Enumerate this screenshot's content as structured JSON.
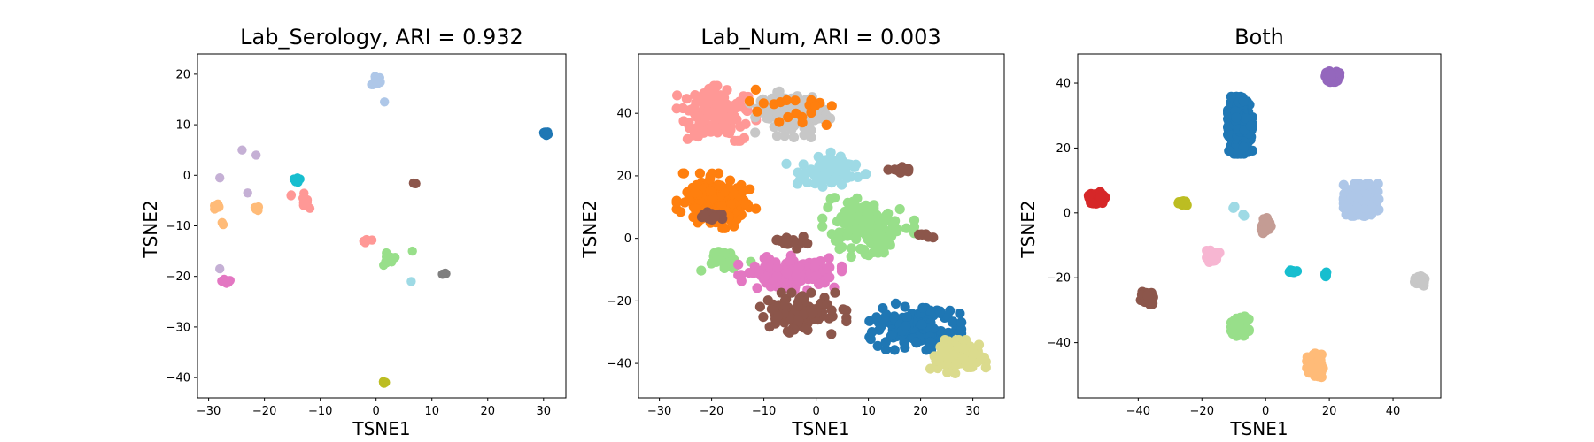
{
  "chart_data": [
    {
      "type": "scatter",
      "title": "Lab_Serology, ARI = 0.932",
      "xlabel": "TSNE1",
      "ylabel": "TSNE2",
      "xlim": [
        -32,
        34
      ],
      "ylim": [
        -44,
        24
      ],
      "xticks": [
        -30,
        -20,
        -10,
        0,
        10,
        20,
        30
      ],
      "yticks": [
        -40,
        -30,
        -20,
        -10,
        0,
        10,
        20
      ],
      "grid": false,
      "clusters": [
        {
          "color": "#aec7e8",
          "center": [
            0,
            18.5
          ],
          "spread": [
            1.2,
            1.6
          ],
          "n": 10,
          "seed": 11
        },
        {
          "color": "#aec7e8",
          "center": [
            1.5,
            14.5
          ],
          "spread": [
            0.2,
            0.2
          ],
          "n": 1,
          "seed": 12
        },
        {
          "color": "#1f77b4",
          "center": [
            30.5,
            8.3
          ],
          "spread": [
            0.6,
            0.6
          ],
          "n": 10,
          "seed": 13
        },
        {
          "color": "#c5b0d5",
          "center": [
            -24,
            5
          ],
          "spread": [
            0.3,
            0.3
          ],
          "n": 1,
          "seed": 14
        },
        {
          "color": "#c5b0d5",
          "center": [
            -21.5,
            4
          ],
          "spread": [
            0.3,
            0.3
          ],
          "n": 1,
          "seed": 15
        },
        {
          "color": "#c5b0d5",
          "center": [
            -28,
            -0.5
          ],
          "spread": [
            0.3,
            0.3
          ],
          "n": 1,
          "seed": 16
        },
        {
          "color": "#c5b0d5",
          "center": [
            -23,
            -3.5
          ],
          "spread": [
            0.3,
            0.3
          ],
          "n": 1,
          "seed": 17
        },
        {
          "color": "#c5b0d5",
          "center": [
            -28,
            -18.5
          ],
          "spread": [
            0.3,
            0.3
          ],
          "n": 1,
          "seed": 18
        },
        {
          "color": "#ffbb78",
          "center": [
            -28.7,
            -6
          ],
          "spread": [
            0.6,
            0.6
          ],
          "n": 6,
          "seed": 19
        },
        {
          "color": "#ffbb78",
          "center": [
            -21.5,
            -6.5
          ],
          "spread": [
            0.5,
            0.9
          ],
          "n": 4,
          "seed": 20
        },
        {
          "color": "#ffbb78",
          "center": [
            -27.5,
            -9.5
          ],
          "spread": [
            0.3,
            0.3
          ],
          "n": 2,
          "seed": 21
        },
        {
          "color": "#17becf",
          "center": [
            -14.3,
            -0.8
          ],
          "spread": [
            0.6,
            0.6
          ],
          "n": 8,
          "seed": 22
        },
        {
          "color": "#ff9896",
          "center": [
            -12.5,
            -5
          ],
          "spread": [
            0.9,
            1.8
          ],
          "n": 8,
          "seed": 23
        },
        {
          "color": "#ff9896",
          "center": [
            -15,
            -3.8
          ],
          "spread": [
            0.3,
            0.3
          ],
          "n": 2,
          "seed": 24
        },
        {
          "color": "#ff9896",
          "center": [
            -1.5,
            -13
          ],
          "spread": [
            0.9,
            0.3
          ],
          "n": 6,
          "seed": 25
        },
        {
          "color": "#8c564b",
          "center": [
            7,
            -1.5
          ],
          "spread": [
            0.3,
            0.3
          ],
          "n": 4,
          "seed": 26
        },
        {
          "color": "#98df8a",
          "center": [
            2,
            -16.5
          ],
          "spread": [
            2.5,
            1.5
          ],
          "n": 10,
          "seed": 27
        },
        {
          "color": "#98df8a",
          "center": [
            6.5,
            -15
          ],
          "spread": [
            0.3,
            0.3
          ],
          "n": 1,
          "seed": 28
        },
        {
          "color": "#9edae5",
          "center": [
            6.3,
            -21
          ],
          "spread": [
            0.3,
            0.3
          ],
          "n": 1,
          "seed": 29
        },
        {
          "color": "#7f7f7f",
          "center": [
            12,
            -19.5
          ],
          "spread": [
            0.6,
            0.3
          ],
          "n": 4,
          "seed": 30
        },
        {
          "color": "#e377c2",
          "center": [
            -27,
            -21
          ],
          "spread": [
            1.2,
            0.4
          ],
          "n": 10,
          "seed": 31
        },
        {
          "color": "#bcbd22",
          "center": [
            1.5,
            -41
          ],
          "spread": [
            0.5,
            0.2
          ],
          "n": 5,
          "seed": 32
        }
      ]
    },
    {
      "type": "scatter",
      "title": "Lab_Num, ARI = 0.003",
      "xlabel": "TSNE1",
      "ylabel": "TSNE2",
      "xlim": [
        -34,
        36
      ],
      "ylim": [
        -51,
        59
      ],
      "xticks": [
        -30,
        -20,
        -10,
        0,
        10,
        20,
        30
      ],
      "yticks": [
        -40,
        -20,
        0,
        20,
        40
      ],
      "grid": false,
      "clusters": [
        {
          "color": "#ff9896",
          "center": [
            -19,
            40
          ],
          "spread": [
            7,
            8
          ],
          "n": 130,
          "seed": 41
        },
        {
          "color": "#c7c7c7",
          "center": [
            -5,
            40
          ],
          "spread": [
            7,
            7
          ],
          "n": 120,
          "seed": 42
        },
        {
          "color": "#9edae5",
          "center": [
            2,
            22
          ],
          "spread": [
            7,
            5
          ],
          "n": 70,
          "seed": 43
        },
        {
          "color": "#ff7f0e",
          "center": [
            -19,
            12
          ],
          "spread": [
            7,
            8
          ],
          "n": 170,
          "seed": 44
        },
        {
          "color": "#ff7f0e",
          "center": [
            -6,
            42
          ],
          "spread": [
            10,
            6
          ],
          "n": 20,
          "seed": 45
        },
        {
          "color": "#98df8a",
          "center": [
            10,
            4
          ],
          "spread": [
            8,
            9
          ],
          "n": 140,
          "seed": 46
        },
        {
          "color": "#98df8a",
          "center": [
            -18,
            -7
          ],
          "spread": [
            5,
            3
          ],
          "n": 25,
          "seed": 47
        },
        {
          "color": "#e377c2",
          "center": [
            -5,
            -11
          ],
          "spread": [
            9,
            5
          ],
          "n": 140,
          "seed": 48
        },
        {
          "color": "#8c564b",
          "center": [
            -3,
            -24
          ],
          "spread": [
            8,
            6
          ],
          "n": 110,
          "seed": 49
        },
        {
          "color": "#8c564b",
          "center": [
            -5,
            -1
          ],
          "spread": [
            4,
            2
          ],
          "n": 20,
          "seed": 50
        },
        {
          "color": "#8c564b",
          "center": [
            -20,
            7
          ],
          "spread": [
            3,
            2
          ],
          "n": 12,
          "seed": 51
        },
        {
          "color": "#8c564b",
          "center": [
            16,
            22
          ],
          "spread": [
            2,
            1
          ],
          "n": 10,
          "seed": 52
        },
        {
          "color": "#8c564b",
          "center": [
            21,
            1
          ],
          "spread": [
            2,
            1
          ],
          "n": 6,
          "seed": 53
        },
        {
          "color": "#1f77b4",
          "center": [
            19,
            -28
          ],
          "spread": [
            8,
            7
          ],
          "n": 170,
          "seed": 54
        },
        {
          "color": "#dbdb8d",
          "center": [
            27,
            -38
          ],
          "spread": [
            5,
            5
          ],
          "n": 110,
          "seed": 55
        }
      ]
    },
    {
      "type": "scatter",
      "title": "Both",
      "xlabel": "TSNE1",
      "ylabel": "TSNE2",
      "xlim": [
        -59,
        55
      ],
      "ylim": [
        -57,
        49
      ],
      "xticks": [
        -40,
        -20,
        0,
        20,
        40
      ],
      "yticks": [
        -40,
        -20,
        0,
        20,
        40
      ],
      "grid": false,
      "clusters": [
        {
          "color": "#1f77b4",
          "center": [
            -8,
            27
          ],
          "spread": [
            3.5,
            8
          ],
          "n": 420,
          "seed": 61
        },
        {
          "color": "#9467bd",
          "center": [
            21,
            42
          ],
          "spread": [
            2,
            1.5
          ],
          "n": 60,
          "seed": 62
        },
        {
          "color": "#d62728",
          "center": [
            -53,
            4.5
          ],
          "spread": [
            2.3,
            1.8
          ],
          "n": 70,
          "seed": 63
        },
        {
          "color": "#bcbd22",
          "center": [
            -26,
            3
          ],
          "spread": [
            1.2,
            1
          ],
          "n": 15,
          "seed": 64
        },
        {
          "color": "#9edae5",
          "center": [
            -10,
            1.5
          ],
          "spread": [
            0.6,
            0.6
          ],
          "n": 3,
          "seed": 65
        },
        {
          "color": "#9edae5",
          "center": [
            -7,
            -1
          ],
          "spread": [
            0.4,
            0.4
          ],
          "n": 2,
          "seed": 66
        },
        {
          "color": "#c49c94",
          "center": [
            0,
            -4
          ],
          "spread": [
            1.5,
            2.2
          ],
          "n": 40,
          "seed": 67
        },
        {
          "color": "#aec7e8",
          "center": [
            30,
            4
          ],
          "spread": [
            5,
            4.5
          ],
          "n": 300,
          "seed": 68
        },
        {
          "color": "#f7b6d2",
          "center": [
            -16.5,
            -13.5
          ],
          "spread": [
            1.8,
            1.8
          ],
          "n": 40,
          "seed": 69
        },
        {
          "color": "#17becf",
          "center": [
            8.5,
            -18
          ],
          "spread": [
            1.2,
            0.6
          ],
          "n": 15,
          "seed": 70
        },
        {
          "color": "#17becf",
          "center": [
            19,
            -19
          ],
          "spread": [
            0.5,
            0.6
          ],
          "n": 8,
          "seed": 71
        },
        {
          "color": "#c7c7c7",
          "center": [
            48.5,
            -21
          ],
          "spread": [
            1.6,
            1.3
          ],
          "n": 40,
          "seed": 72
        },
        {
          "color": "#8c564b",
          "center": [
            -37,
            -26
          ],
          "spread": [
            2,
            2
          ],
          "n": 50,
          "seed": 73
        },
        {
          "color": "#98df8a",
          "center": [
            -8,
            -35
          ],
          "spread": [
            2.5,
            2.8
          ],
          "n": 110,
          "seed": 74
        },
        {
          "color": "#ffbb78",
          "center": [
            15.5,
            -47
          ],
          "spread": [
            2.3,
            3.3
          ],
          "n": 150,
          "seed": 75
        }
      ]
    }
  ]
}
